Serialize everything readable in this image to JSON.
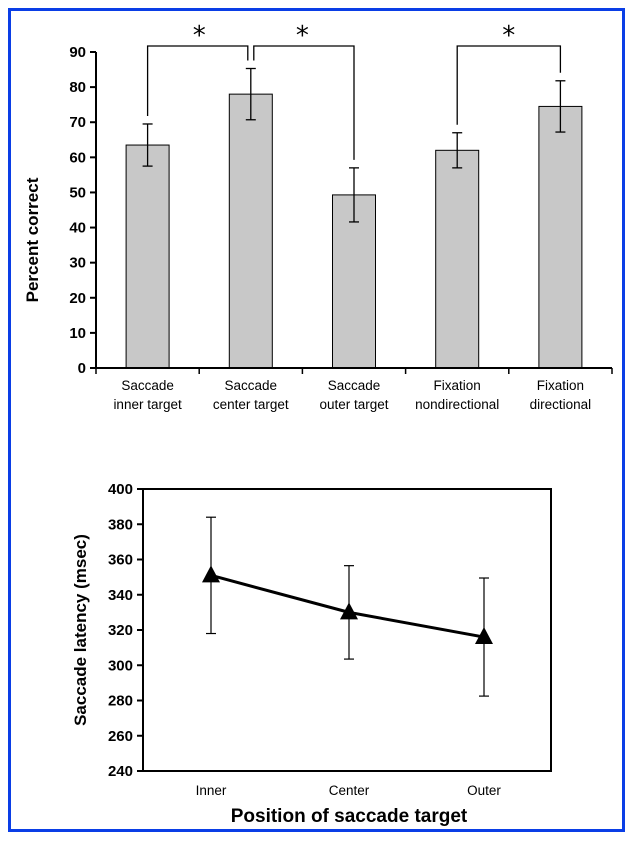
{
  "chart_data": [
    {
      "type": "bar",
      "categories": [
        [
          "Saccade",
          "inner target"
        ],
        [
          "Saccade",
          "center target"
        ],
        [
          "Saccade",
          "outer target"
        ],
        [
          "Fixation",
          "nondirectional"
        ],
        [
          "Fixation",
          "directional"
        ]
      ],
      "values": [
        63.5,
        78,
        49.3,
        62,
        74.5
      ],
      "errors": [
        6,
        7.3,
        7.7,
        5,
        7.3
      ],
      "ylabel": "Percent correct",
      "ylim": [
        0,
        90
      ],
      "yticks": [
        0,
        10,
        20,
        30,
        40,
        50,
        60,
        70,
        80,
        90
      ],
      "bar_color": "#c8c8c8",
      "significance": [
        {
          "from": 0,
          "to": 1,
          "label": "*"
        },
        {
          "from": 1,
          "to": 2,
          "label": "*"
        },
        {
          "from": 3,
          "to": 4,
          "label": "*"
        }
      ],
      "grid": false
    },
    {
      "type": "line",
      "categories": [
        "Inner",
        "Center",
        "Outer"
      ],
      "values": [
        351,
        330,
        316
      ],
      "errors": [
        33,
        26.5,
        33.5
      ],
      "marker": "triangle",
      "ylabel": "Saccade latency (msec)",
      "xlabel": "Position of saccade target",
      "ylim": [
        240,
        400
      ],
      "yticks": [
        240,
        260,
        280,
        300,
        320,
        340,
        360,
        380,
        400
      ],
      "grid": false
    }
  ]
}
